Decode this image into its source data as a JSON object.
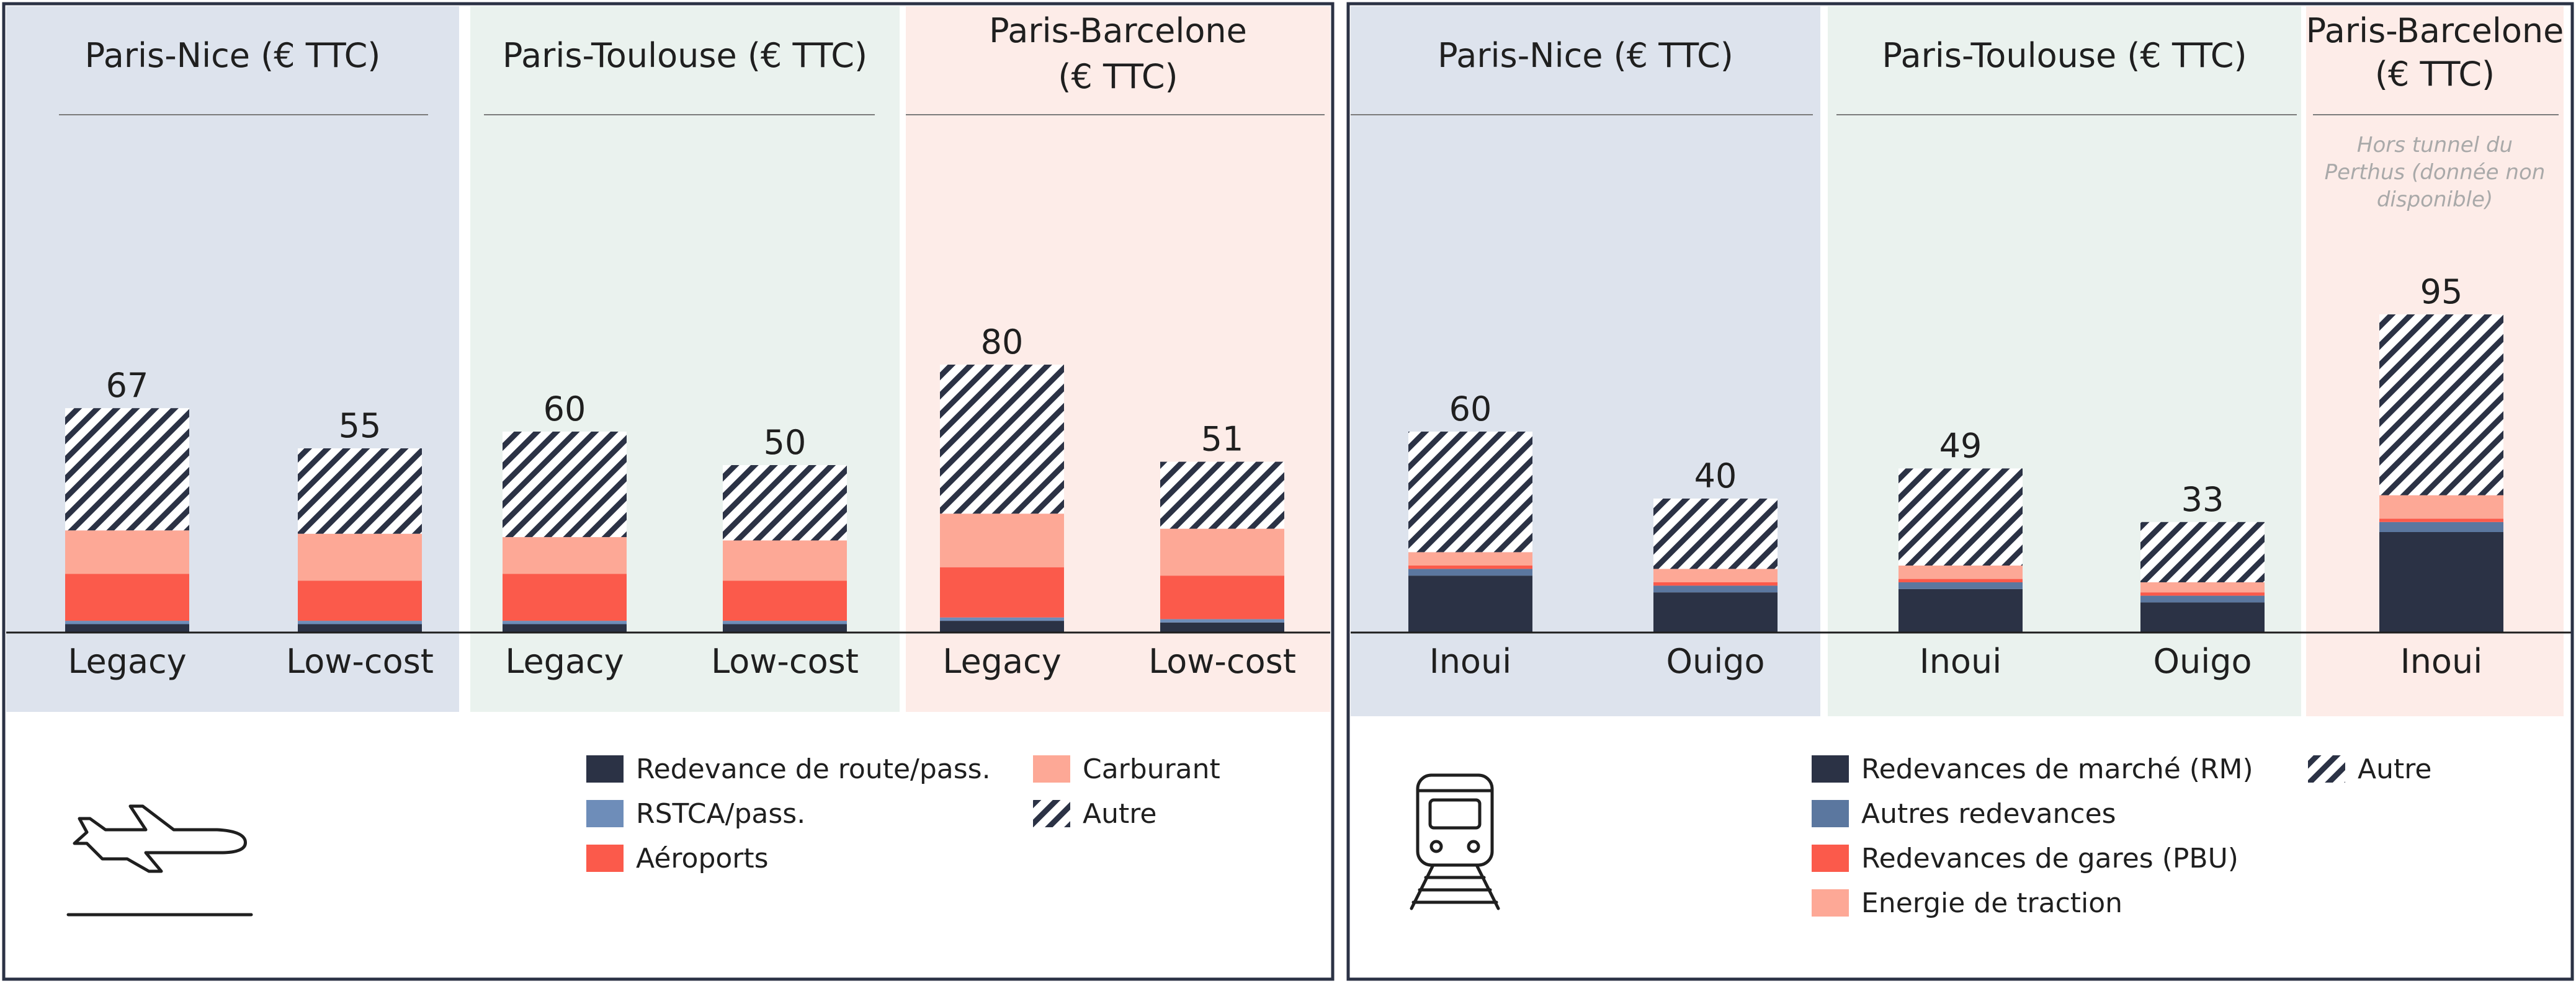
{
  "colors": {
    "band_nice": "#dde3ed",
    "band_toulouse": "#eaf2ee",
    "band_barcelone": "#fdece8",
    "frame": "#2b3245",
    "divider_line": "#7a7a7a",
    "baseline": "#1f1f1f",
    "redevance_route": "#2b3245",
    "rstca": "#6e8db9",
    "aeroports": "#fb5a4b",
    "carburant": "#fda896",
    "rm": "#2b3245",
    "autres_redevances": "#5b779f",
    "pbu": "#fb5a4b",
    "energie": "#fda896",
    "autre_hatch": "#2b3245",
    "note_text": "#a9a9a9"
  },
  "chart_data": [
    {
      "type": "bar",
      "mode": "stacked",
      "title": "",
      "xlabel": "",
      "ylabel": "",
      "ylim": [
        0,
        100
      ],
      "grid": false,
      "legend_position": "bottom",
      "icon": "airplane-icon",
      "groups": [
        {
          "title": "Paris-Nice (€ TTC)",
          "band": "band_nice",
          "categories": [
            "Legacy",
            "Low-cost"
          ],
          "totals": [
            67,
            55
          ]
        },
        {
          "title": "Paris-Toulouse (€ TTC)",
          "band": "band_toulouse",
          "categories": [
            "Legacy",
            "Low-cost"
          ],
          "totals": [
            60,
            50
          ]
        },
        {
          "title": "Paris-Barcelone\n(€ TTC)",
          "band": "band_barcelone",
          "categories": [
            "Legacy",
            "Low-cost"
          ],
          "totals": [
            80,
            51
          ]
        }
      ],
      "series": [
        {
          "name": "Redevance de route/pass.",
          "color": "redevance_route",
          "values": [
            2.5,
            2.5,
            2.5,
            2.5,
            3.5,
            3.0
          ]
        },
        {
          "name": "RSTCA/pass.",
          "color": "rstca",
          "values": [
            1.0,
            1.0,
            1.0,
            1.0,
            1.0,
            1.0
          ]
        },
        {
          "name": "Aéroports",
          "color": "aeroports",
          "values": [
            14,
            12,
            14,
            12,
            15,
            13
          ]
        },
        {
          "name": "Carburant",
          "color": "carburant",
          "values": [
            13,
            14,
            11,
            12,
            16,
            14
          ]
        },
        {
          "name": "Autre",
          "color": "autre_hatch",
          "hatch": true,
          "values": [
            36.5,
            25.5,
            31.5,
            22.5,
            44.5,
            20.0
          ]
        }
      ],
      "legend_layout": [
        [
          "Redevance de route/pass.",
          "Carburant"
        ],
        [
          "RSTCA/pass.",
          "Autre"
        ],
        [
          "Aéroports"
        ]
      ]
    },
    {
      "type": "bar",
      "mode": "stacked",
      "title": "",
      "xlabel": "",
      "ylabel": "",
      "ylim": [
        0,
        100
      ],
      "grid": false,
      "legend_position": "bottom",
      "icon": "train-icon",
      "groups": [
        {
          "title": "Paris-Nice (€ TTC)",
          "band": "band_nice",
          "categories": [
            "Inoui",
            "Ouigo"
          ],
          "totals": [
            60,
            40
          ]
        },
        {
          "title": "Paris-Toulouse (€ TTC)",
          "band": "band_toulouse",
          "categories": [
            "Inoui",
            "Ouigo"
          ],
          "totals": [
            49,
            33
          ]
        },
        {
          "title": "Paris-Barcelone\n(€ TTC)",
          "band": "band_barcelone",
          "categories": [
            "Inoui"
          ],
          "totals": [
            95
          ],
          "note": "Hors tunnel du\nPerthus (donnée non\ndisponible)"
        }
      ],
      "series": [
        {
          "name": "Redevances de marché (RM)",
          "color": "rm",
          "values": [
            17,
            12,
            13,
            9,
            30
          ]
        },
        {
          "name": "Autres redevances",
          "color": "autres_redevances",
          "values": [
            2,
            2,
            2,
            2,
            3
          ]
        },
        {
          "name": "Redevances de gares (PBU)",
          "color": "pbu",
          "values": [
            1,
            1,
            1,
            1,
            1
          ]
        },
        {
          "name": "Energie de traction",
          "color": "energie",
          "values": [
            4,
            4,
            4,
            3,
            7
          ]
        },
        {
          "name": "Autre",
          "color": "autre_hatch",
          "hatch": true,
          "values": [
            36,
            21,
            29,
            18,
            54
          ]
        }
      ],
      "legend_layout": [
        [
          "Redevances de marché (RM)",
          "Autre"
        ],
        [
          "Autres redevances"
        ],
        [
          "Redevances de gares (PBU)"
        ],
        [
          "Energie de traction"
        ]
      ]
    }
  ]
}
